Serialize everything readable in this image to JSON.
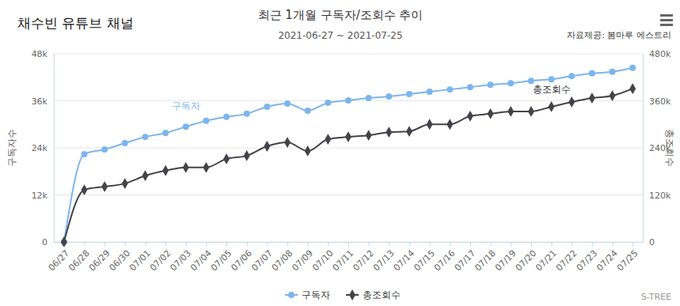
{
  "chart_data": {
    "type": "line",
    "corner_title": "채수빈 유튜브 채널",
    "title": "최근 1개월 구독자/조회수 추이",
    "subtitle": "2021-06-27 ~ 2021-07-25",
    "source": "자료제공: 봄마루 에스트리",
    "credit": "S-TREE",
    "y_label": "구독자수",
    "y2_label": "총조회수",
    "annotations": [
      "구독자",
      "총조회수"
    ],
    "categories": [
      "06/27",
      "06/28",
      "06/29",
      "06/30",
      "07/01",
      "07/02",
      "07/03",
      "07/04",
      "07/05",
      "07/06",
      "07/07",
      "07/08",
      "07/09",
      "07/10",
      "07/11",
      "07/12",
      "07/13",
      "07/14",
      "07/15",
      "07/16",
      "07/17",
      "07/18",
      "07/19",
      "07/20",
      "07/21",
      "07/22",
      "07/23",
      "07/24",
      "07/25"
    ],
    "series": [
      {
        "name": "구독자",
        "color": "#7cb5ec",
        "marker": "circle",
        "axis": "y",
        "values": [
          0,
          22400,
          23600,
          25200,
          26800,
          27800,
          29400,
          30900,
          31900,
          32700,
          34500,
          35300,
          33500,
          35500,
          36100,
          36700,
          37100,
          37700,
          38300,
          38900,
          39500,
          40100,
          40500,
          41100,
          41500,
          42300,
          43000,
          43400,
          44400
        ]
      },
      {
        "name": "총조회수",
        "color": "#434348",
        "marker": "diamond",
        "axis": "y2",
        "values": [
          0,
          133000,
          141000,
          149000,
          169000,
          182000,
          190000,
          190000,
          212000,
          220000,
          244000,
          254000,
          232000,
          262000,
          268000,
          272000,
          280000,
          282000,
          300000,
          300000,
          321000,
          327000,
          333000,
          333000,
          345000,
          357000,
          367000,
          373000,
          391000
        ]
      }
    ],
    "ylim": [
      0,
      48000
    ],
    "yticks": [
      0,
      {
        "value": 12000,
        "label": "12k"
      },
      {
        "value": 24000,
        "label": "24k"
      },
      {
        "value": 36000,
        "label": "36k"
      },
      {
        "value": 48000,
        "label": "48k"
      }
    ],
    "y2lim": [
      0,
      480000
    ],
    "y2ticks": [
      0,
      {
        "value": 120000,
        "label": "120k"
      },
      {
        "value": 240000,
        "label": "240k"
      },
      {
        "value": 360000,
        "label": "360k"
      },
      {
        "value": 480000,
        "label": "480k"
      }
    ],
    "grid": true,
    "legend": "bottom"
  }
}
